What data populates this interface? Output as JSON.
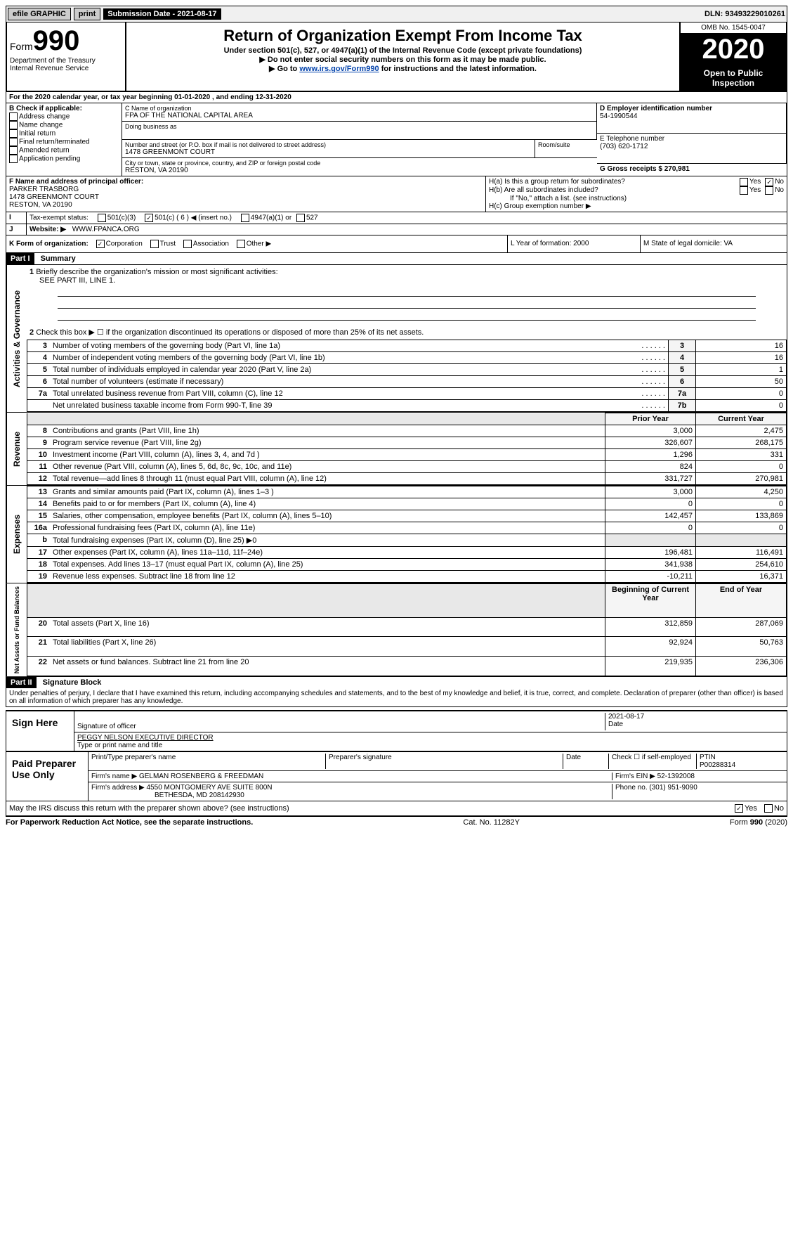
{
  "top": {
    "efile": "efile GRAPHIC",
    "print": "print",
    "sub_label": "Submission Date - 2021-08-17",
    "dln": "DLN: 93493229010261"
  },
  "header": {
    "form_word": "Form",
    "form_num": "990",
    "dept1": "Department of the Treasury",
    "dept2": "Internal Revenue Service",
    "title": "Return of Organization Exempt From Income Tax",
    "subtitle": "Under section 501(c), 527, or 4947(a)(1) of the Internal Revenue Code (except private foundations)",
    "note1": "▶ Do not enter social security numbers on this form as it may be made public.",
    "note2_pre": "▶ Go to ",
    "note2_link": "www.irs.gov/Form990",
    "note2_post": " for instructions and the latest information.",
    "omb": "OMB No. 1545-0047",
    "year": "2020",
    "open": "Open to Public Inspection"
  },
  "period": {
    "line": "For the 2020 calendar year, or tax year beginning 01-01-2020   , and ending 12-31-2020"
  },
  "boxB": {
    "label": "B Check if applicable:",
    "opts": [
      "Address change",
      "Name change",
      "Initial return",
      "Final return/terminated",
      "Amended return",
      "Application pending"
    ]
  },
  "boxC": {
    "name_label": "C Name of organization",
    "name": "FPA OF THE NATIONAL CAPITAL AREA",
    "dba_label": "Doing business as",
    "addr_label": "Number and street (or P.O. box if mail is not delivered to street address)",
    "addr": "1478 GREENMONT COURT",
    "room_label": "Room/suite",
    "city_label": "City or town, state or province, country, and ZIP or foreign postal code",
    "city": "RESTON, VA  20190"
  },
  "boxD": {
    "label": "D Employer identification number",
    "val": "54-1990544"
  },
  "boxE": {
    "label": "E Telephone number",
    "val": "(703) 620-1712"
  },
  "boxG": {
    "label": "G Gross receipts $ 270,981"
  },
  "boxF": {
    "label": "F  Name and address of principal officer:",
    "name": "PARKER TRASBORG",
    "addr1": "1478 GREENMONT COURT",
    "addr2": "RESTON, VA  20190"
  },
  "boxH": {
    "a_label": "H(a)  Is this a group return for subordinates?",
    "b_label": "H(b)  Are all subordinates included?",
    "b_note": "If \"No,\" attach a list. (see instructions)",
    "c_label": "H(c)  Group exemption number ▶",
    "yes": "Yes",
    "no": "No"
  },
  "boxI": {
    "label": "Tax-exempt status:",
    "c3": "501(c)(3)",
    "c": "501(c) ( 6 ) ◀ (insert no.)",
    "a1": "4947(a)(1) or",
    "527": "527"
  },
  "boxJ": {
    "label": "Website: ▶",
    "val": "WWW.FPANCA.ORG"
  },
  "boxK": {
    "label": "K Form of organization:",
    "corp": "Corporation",
    "trust": "Trust",
    "assoc": "Association",
    "other": "Other ▶"
  },
  "boxL": {
    "label": "L Year of formation: 2000"
  },
  "boxM": {
    "label": "M State of legal domicile: VA"
  },
  "part1": {
    "header": "Part I",
    "title": "Summary",
    "q1": "Briefly describe the organization's mission or most significant activities:",
    "q1_ans": "SEE PART III, LINE 1.",
    "q2": "Check this box ▶ ☐  if the organization discontinued its operations or disposed of more than 25% of its net assets.",
    "lines_gov": [
      {
        "n": "3",
        "d": "Number of voting members of the governing body (Part VI, line 1a)",
        "box": "3",
        "v": "16"
      },
      {
        "n": "4",
        "d": "Number of independent voting members of the governing body (Part VI, line 1b)",
        "box": "4",
        "v": "16"
      },
      {
        "n": "5",
        "d": "Total number of individuals employed in calendar year 2020 (Part V, line 2a)",
        "box": "5",
        "v": "1"
      },
      {
        "n": "6",
        "d": "Total number of volunteers (estimate if necessary)",
        "box": "6",
        "v": "50"
      },
      {
        "n": "7a",
        "d": "Total unrelated business revenue from Part VIII, column (C), line 12",
        "box": "7a",
        "v": "0"
      },
      {
        "n": "",
        "d": "Net unrelated business taxable income from Form 990-T, line 39",
        "box": "7b",
        "v": "0"
      }
    ],
    "prior_label": "Prior Year",
    "current_label": "Current Year",
    "lines_rev": [
      {
        "n": "8",
        "d": "Contributions and grants (Part VIII, line 1h)",
        "p": "3,000",
        "c": "2,475"
      },
      {
        "n": "9",
        "d": "Program service revenue (Part VIII, line 2g)",
        "p": "326,607",
        "c": "268,175"
      },
      {
        "n": "10",
        "d": "Investment income (Part VIII, column (A), lines 3, 4, and 7d )",
        "p": "1,296",
        "c": "331"
      },
      {
        "n": "11",
        "d": "Other revenue (Part VIII, column (A), lines 5, 6d, 8c, 9c, 10c, and 11e)",
        "p": "824",
        "c": "0"
      },
      {
        "n": "12",
        "d": "Total revenue—add lines 8 through 11 (must equal Part VIII, column (A), line 12)",
        "p": "331,727",
        "c": "270,981"
      }
    ],
    "lines_exp": [
      {
        "n": "13",
        "d": "Grants and similar amounts paid (Part IX, column (A), lines 1–3 )",
        "p": "3,000",
        "c": "4,250"
      },
      {
        "n": "14",
        "d": "Benefits paid to or for members (Part IX, column (A), line 4)",
        "p": "0",
        "c": "0"
      },
      {
        "n": "15",
        "d": "Salaries, other compensation, employee benefits (Part IX, column (A), lines 5–10)",
        "p": "142,457",
        "c": "133,869"
      },
      {
        "n": "16a",
        "d": "Professional fundraising fees (Part IX, column (A), line 11e)",
        "p": "0",
        "c": "0"
      },
      {
        "n": "b",
        "d": "Total fundraising expenses (Part IX, column (D), line 25) ▶0",
        "p": "",
        "c": "",
        "shaded": true
      },
      {
        "n": "17",
        "d": "Other expenses (Part IX, column (A), lines 11a–11d, 11f–24e)",
        "p": "196,481",
        "c": "116,491"
      },
      {
        "n": "18",
        "d": "Total expenses. Add lines 13–17 (must equal Part IX, column (A), line 25)",
        "p": "341,938",
        "c": "254,610"
      },
      {
        "n": "19",
        "d": "Revenue less expenses. Subtract line 18 from line 12",
        "p": "-10,211",
        "c": "16,371"
      }
    ],
    "begin_label": "Beginning of Current Year",
    "end_label": "End of Year",
    "lines_net": [
      {
        "n": "20",
        "d": "Total assets (Part X, line 16)",
        "p": "312,859",
        "c": "287,069"
      },
      {
        "n": "21",
        "d": "Total liabilities (Part X, line 26)",
        "p": "92,924",
        "c": "50,763"
      },
      {
        "n": "22",
        "d": "Net assets or fund balances. Subtract line 21 from line 20",
        "p": "219,935",
        "c": "236,306"
      }
    ],
    "vert_gov": "Activities & Governance",
    "vert_rev": "Revenue",
    "vert_exp": "Expenses",
    "vert_net": "Net Assets or Fund Balances"
  },
  "part2": {
    "header": "Part II",
    "title": "Signature Block",
    "decl": "Under penalties of perjury, I declare that I have examined this return, including accompanying schedules and statements, and to the best of my knowledge and belief, it is true, correct, and complete. Declaration of preparer (other than officer) is based on all information of which preparer has any knowledge.",
    "sign_here": "Sign Here",
    "sig_officer": "Signature of officer",
    "date_label": "Date",
    "date": "2021-08-17",
    "name_title": "PEGGY NELSON  EXECUTIVE DIRECTOR",
    "name_title_label": "Type or print name and title",
    "paid": "Paid Preparer Use Only",
    "prep_name_label": "Print/Type preparer's name",
    "prep_sig_label": "Preparer's signature",
    "check_se": "Check ☐ if self-employed",
    "ptin_label": "PTIN",
    "ptin": "P00288314",
    "firm_name_label": "Firm's name    ▶",
    "firm_name": "GELMAN ROSENBERG & FREEDMAN",
    "firm_ein_label": "Firm's EIN ▶",
    "firm_ein": "52-1392008",
    "firm_addr_label": "Firm's address ▶",
    "firm_addr1": "4550 MONTGOMERY AVE SUITE 800N",
    "firm_addr2": "BETHESDA, MD  208142930",
    "phone_label": "Phone no.",
    "phone": "(301) 951-9090",
    "discuss": "May the IRS discuss this return with the preparer shown above? (see instructions)"
  },
  "footer": {
    "pra": "For Paperwork Reduction Act Notice, see the separate instructions.",
    "cat": "Cat. No. 11282Y",
    "form": "Form 990 (2020)"
  }
}
